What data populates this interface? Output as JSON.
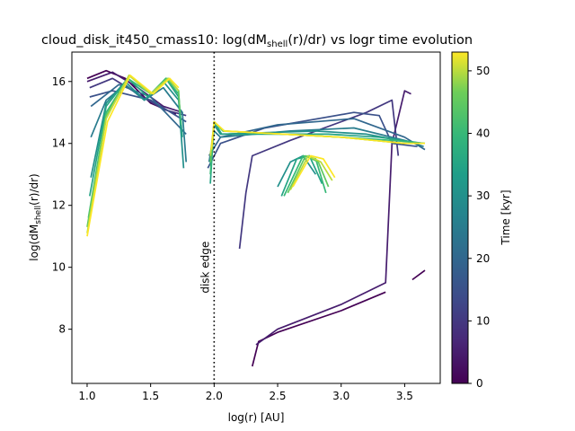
{
  "chart_data": {
    "type": "line",
    "title_main": "cloud_disk_it450_cmass10: log(dM",
    "title_sub": "shell",
    "title_tail": "(r)/dr) vs logr time evolution",
    "xlabel": "log(r) [AU]",
    "ylabel_main": "log(dM",
    "ylabel_sub": "shell",
    "ylabel_tail": "(r)/dr)",
    "xlim": [
      0.88,
      3.78
    ],
    "ylim": [
      6.25,
      16.95
    ],
    "xticks": [
      "1.0",
      "1.5",
      "2.0",
      "2.5",
      "3.0",
      "3.5"
    ],
    "xtick_values": [
      1.0,
      1.5,
      2.0,
      2.5,
      3.0,
      3.5
    ],
    "yticks": [
      "8",
      "10",
      "12",
      "14",
      "16"
    ],
    "ytick_values": [
      8,
      10,
      12,
      14,
      16
    ],
    "colorbar": {
      "label": "Time [kyr]",
      "range": [
        0,
        53
      ],
      "ticks": [
        "0",
        "10",
        "20",
        "30",
        "40",
        "50"
      ],
      "tick_values": [
        0,
        10,
        20,
        30,
        40,
        50
      ],
      "colormap": "viridis"
    },
    "annotation": {
      "text": "disk edge",
      "x": 2.0
    },
    "series_count": 40,
    "series": [
      {
        "time": 0.0,
        "segments": [
          [
            [
              1.0,
              16.1
            ],
            [
              1.15,
              16.35
            ],
            [
              1.3,
              16.1
            ],
            [
              1.5,
              15.3
            ],
            [
              1.7,
              14.95
            ]
          ],
          [
            [
              2.3,
              6.8
            ],
            [
              2.35,
              7.6
            ],
            [
              2.5,
              7.9
            ],
            [
              3.0,
              8.6
            ],
            [
              3.35,
              9.2
            ]
          ],
          [
            [
              3.56,
              9.6
            ],
            [
              3.66,
              9.9
            ]
          ]
        ]
      },
      {
        "time": 5.0,
        "segments": [
          [
            [
              1.0,
              16.0
            ],
            [
              1.2,
              16.3
            ],
            [
              1.4,
              15.8
            ],
            [
              1.6,
              15.2
            ],
            [
              1.75,
              15.0
            ]
          ],
          [
            [
              2.33,
              7.5
            ],
            [
              2.5,
              8.0
            ],
            [
              3.0,
              8.8
            ],
            [
              3.35,
              9.5
            ],
            [
              3.4,
              14.0
            ],
            [
              3.5,
              15.7
            ],
            [
              3.55,
              15.6
            ]
          ]
        ]
      },
      {
        "time": 10.0,
        "segments": [
          [
            [
              1.02,
              15.8
            ],
            [
              1.2,
              16.1
            ],
            [
              1.4,
              15.6
            ],
            [
              1.6,
              15.1
            ],
            [
              1.78,
              14.9
            ]
          ],
          [
            [
              2.2,
              10.6
            ],
            [
              2.25,
              12.4
            ],
            [
              2.3,
              13.6
            ],
            [
              2.6,
              14.1
            ],
            [
              3.2,
              15.0
            ],
            [
              3.4,
              15.4
            ],
            [
              3.45,
              13.6
            ]
          ]
        ]
      },
      {
        "time": 15.0,
        "segments": [
          [
            [
              1.02,
              15.5
            ],
            [
              1.2,
              15.7
            ],
            [
              1.5,
              15.4
            ],
            [
              1.78,
              14.7
            ]
          ],
          [
            [
              1.95,
              13.2
            ],
            [
              2.05,
              14.0
            ],
            [
              2.4,
              14.5
            ],
            [
              3.1,
              15.0
            ],
            [
              3.3,
              14.9
            ],
            [
              3.4,
              14.0
            ],
            [
              3.6,
              13.9
            ]
          ]
        ]
      },
      {
        "time": 20.0,
        "segments": [
          [
            [
              1.03,
              15.2
            ],
            [
              1.25,
              15.9
            ],
            [
              1.5,
              15.5
            ],
            [
              1.78,
              14.3
            ]
          ],
          [
            [
              1.96,
              13.6
            ],
            [
              2.05,
              14.2
            ],
            [
              2.5,
              14.6
            ],
            [
              3.1,
              14.8
            ],
            [
              3.5,
              14.2
            ],
            [
              3.66,
              13.8
            ]
          ]
        ]
      },
      {
        "time": 25.0,
        "segments": [
          [
            [
              1.03,
              14.2
            ],
            [
              1.15,
              15.4
            ],
            [
              1.3,
              15.9
            ],
            [
              1.45,
              15.4
            ],
            [
              1.6,
              15.8
            ],
            [
              1.75,
              15.0
            ],
            [
              1.78,
              13.4
            ]
          ],
          [
            [
              1.96,
              13.4
            ],
            [
              2.0,
              14.4
            ],
            [
              2.05,
              14.2
            ],
            [
              2.6,
              14.4
            ],
            [
              3.1,
              14.5
            ],
            [
              3.5,
              14.1
            ],
            [
              3.65,
              13.9
            ]
          ]
        ]
      },
      {
        "time": 30.0,
        "segments": [
          [
            [
              1.03,
              12.9
            ],
            [
              1.15,
              15.3
            ],
            [
              1.3,
              16.0
            ],
            [
              1.45,
              15.4
            ],
            [
              1.6,
              16.0
            ],
            [
              1.72,
              15.4
            ],
            [
              1.76,
              13.2
            ]
          ],
          [
            [
              1.97,
              13.3
            ],
            [
              2.0,
              14.6
            ],
            [
              2.05,
              14.3
            ],
            [
              2.8,
              14.4
            ],
            [
              3.2,
              14.3
            ],
            [
              3.6,
              14.0
            ]
          ],
          [
            [
              2.5,
              12.6
            ],
            [
              2.6,
              13.4
            ],
            [
              2.7,
              13.6
            ],
            [
              2.8,
              13.0
            ]
          ]
        ]
      },
      {
        "time": 35.0,
        "segments": [
          [
            [
              1.02,
              12.3
            ],
            [
              1.15,
              15.2
            ],
            [
              1.32,
              16.1
            ],
            [
              1.48,
              15.5
            ],
            [
              1.62,
              16.1
            ],
            [
              1.72,
              15.5
            ],
            [
              1.75,
              14.2
            ]
          ],
          [
            [
              1.97,
              12.7
            ],
            [
              2.0,
              14.7
            ],
            [
              2.06,
              14.3
            ],
            [
              2.9,
              14.3
            ],
            [
              3.3,
              14.2
            ],
            [
              3.65,
              14.0
            ]
          ],
          [
            [
              2.53,
              12.3
            ],
            [
              2.65,
              13.5
            ],
            [
              2.75,
              13.6
            ],
            [
              2.85,
              12.7
            ]
          ]
        ]
      },
      {
        "time": 40.0,
        "segments": [
          [
            [
              1.01,
              11.6
            ],
            [
              1.15,
              15.0
            ],
            [
              1.32,
              16.1
            ],
            [
              1.5,
              15.6
            ],
            [
              1.62,
              16.1
            ],
            [
              1.72,
              15.6
            ],
            [
              1.74,
              14.6
            ]
          ],
          [
            [
              1.97,
              13.0
            ],
            [
              2.0,
              14.7
            ],
            [
              2.07,
              14.4
            ],
            [
              3.0,
              14.2
            ],
            [
              3.4,
              14.1
            ],
            [
              3.66,
              14.0
            ]
          ],
          [
            [
              2.55,
              12.3
            ],
            [
              2.7,
              13.6
            ],
            [
              2.8,
              13.5
            ],
            [
              2.88,
              12.4
            ]
          ]
        ]
      },
      {
        "time": 45.0,
        "segments": [
          [
            [
              1.0,
              11.3
            ],
            [
              1.15,
              14.9
            ],
            [
              1.33,
              16.2
            ],
            [
              1.5,
              15.6
            ],
            [
              1.63,
              16.1
            ],
            [
              1.72,
              15.7
            ],
            [
              1.73,
              15.0
            ]
          ],
          [
            [
              1.97,
              13.4
            ],
            [
              2.0,
              14.7
            ],
            [
              2.07,
              14.4
            ],
            [
              3.0,
              14.2
            ],
            [
              3.5,
              14.0
            ],
            [
              3.66,
              14.0
            ]
          ],
          [
            [
              2.58,
              12.4
            ],
            [
              2.72,
              13.6
            ],
            [
              2.82,
              13.4
            ],
            [
              2.9,
              12.6
            ]
          ]
        ]
      },
      {
        "time": 50.0,
        "segments": [
          [
            [
              1.0,
              11.1
            ],
            [
              1.15,
              14.8
            ],
            [
              1.33,
              16.2
            ],
            [
              1.5,
              15.6
            ],
            [
              1.64,
              16.1
            ],
            [
              1.72,
              15.7
            ]
          ],
          [
            [
              1.97,
              13.6
            ],
            [
              2.0,
              14.7
            ],
            [
              2.08,
              14.4
            ],
            [
              3.0,
              14.2
            ],
            [
              3.5,
              14.0
            ],
            [
              3.66,
              14.0
            ]
          ],
          [
            [
              2.6,
              12.5
            ],
            [
              2.74,
              13.6
            ],
            [
              2.84,
              13.4
            ],
            [
              2.93,
              12.8
            ]
          ]
        ]
      },
      {
        "time": 53.0,
        "segments": [
          [
            [
              1.0,
              11.0
            ],
            [
              1.16,
              14.7
            ],
            [
              1.34,
              16.2
            ],
            [
              1.52,
              15.6
            ],
            [
              1.65,
              16.1
            ],
            [
              1.72,
              15.8
            ]
          ],
          [
            [
              1.98,
              13.8
            ],
            [
              2.0,
              14.7
            ],
            [
              2.08,
              14.4
            ],
            [
              3.0,
              14.2
            ],
            [
              3.5,
              14.0
            ],
            [
              3.66,
              14.0
            ]
          ],
          [
            [
              2.62,
              12.6
            ],
            [
              2.76,
              13.6
            ],
            [
              2.86,
              13.5
            ],
            [
              2.95,
              12.9
            ]
          ]
        ]
      }
    ]
  }
}
